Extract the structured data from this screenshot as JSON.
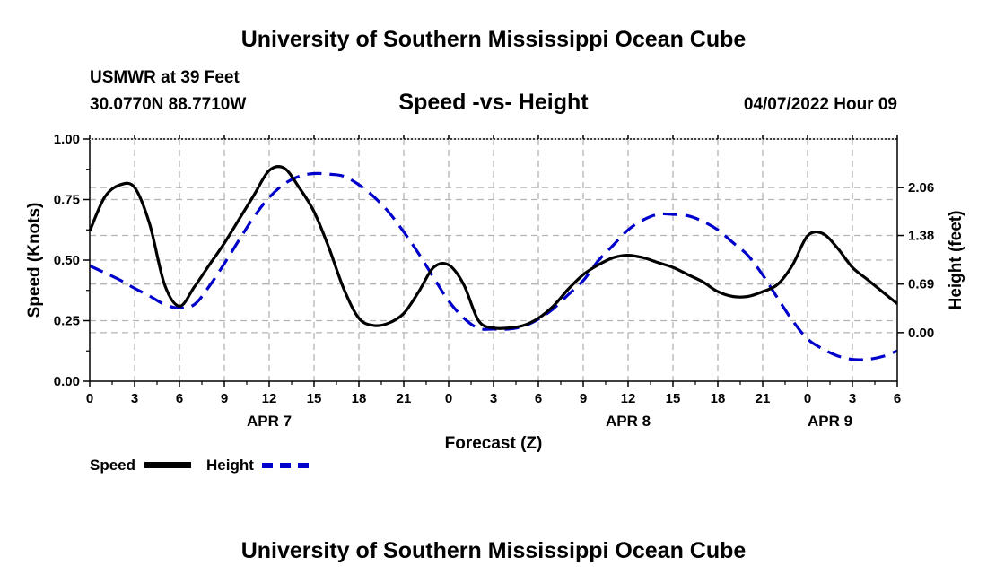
{
  "header": {
    "title": "University of Southern Mississippi Ocean Cube",
    "station": "USMWR at 39 Feet",
    "coordinates": "30.0770N  88.7710W",
    "subtitle": "Speed -vs- Height",
    "datetime": "04/07/2022 Hour 09"
  },
  "footer": {
    "title": "University of Southern Mississippi Ocean Cube"
  },
  "legend": {
    "speed_label": "Speed",
    "height_label": "Height"
  },
  "colors": {
    "speed": "#000000",
    "height": "#0000cc",
    "grid": "#b4b4b4"
  },
  "chart_data": {
    "type": "line",
    "title": "Speed -vs- Height",
    "xlabel": "Forecast (Z)",
    "ylabel": "Speed (Knots)",
    "y2label": "Height (feet)",
    "xlim": [
      0,
      54
    ],
    "ylim": [
      0,
      1
    ],
    "y2lim": [
      -0.69,
      2.75
    ],
    "grid": true,
    "x_ticks": [
      0,
      3,
      6,
      9,
      12,
      15,
      18,
      21,
      24,
      27,
      30,
      33,
      36,
      39,
      42,
      45,
      48,
      51,
      54
    ],
    "x_tick_labels": [
      "0",
      "3",
      "6",
      "9",
      "12",
      "15",
      "18",
      "21",
      "0",
      "3",
      "6",
      "9",
      "12",
      "15",
      "18",
      "21",
      "0",
      "3",
      "6"
    ],
    "date_labels": [
      {
        "label": "APR 7",
        "x": 12
      },
      {
        "label": "APR 8",
        "x": 36
      },
      {
        "label": "APR 9",
        "x": 49.5
      }
    ],
    "y_ticks": [
      0.0,
      0.25,
      0.5,
      0.75,
      1.0
    ],
    "y_tick_labels": [
      "0.00",
      "0.25",
      "0.50",
      "0.75",
      "1.00"
    ],
    "y2_ticks": [
      0.0,
      0.69,
      1.38,
      2.06
    ],
    "y2_tick_labels": [
      "0.00",
      "0.69",
      "1.38",
      "2.06"
    ],
    "series": [
      {
        "name": "Speed",
        "axis": "left",
        "style": "solid",
        "x": [
          0,
          1,
          2,
          3,
          4,
          5,
          6,
          7,
          8,
          9,
          10,
          11,
          12,
          13,
          14,
          15,
          16,
          17,
          18,
          19,
          20,
          21,
          22,
          23,
          24,
          25,
          26,
          27,
          28,
          29,
          30,
          31,
          32,
          33,
          34,
          35,
          36,
          37,
          38,
          39,
          40,
          41,
          42,
          43,
          44,
          45,
          46,
          47,
          48,
          49,
          50,
          51,
          52,
          53,
          54
        ],
        "values": [
          0.62,
          0.76,
          0.81,
          0.8,
          0.65,
          0.4,
          0.31,
          0.39,
          0.48,
          0.57,
          0.67,
          0.77,
          0.87,
          0.88,
          0.8,
          0.7,
          0.55,
          0.38,
          0.26,
          0.23,
          0.24,
          0.28,
          0.37,
          0.47,
          0.48,
          0.4,
          0.25,
          0.22,
          0.22,
          0.23,
          0.26,
          0.31,
          0.38,
          0.44,
          0.48,
          0.51,
          0.52,
          0.51,
          0.49,
          0.47,
          0.44,
          0.41,
          0.37,
          0.35,
          0.35,
          0.37,
          0.4,
          0.48,
          0.6,
          0.61,
          0.55,
          0.47,
          0.42,
          0.37,
          0.32
        ]
      },
      {
        "name": "Height",
        "axis": "right",
        "style": "dashed",
        "x": [
          0,
          1,
          2,
          3,
          4,
          5,
          6,
          7,
          8,
          9,
          10,
          11,
          12,
          13,
          14,
          15,
          16,
          17,
          18,
          19,
          20,
          21,
          22,
          23,
          24,
          25,
          26,
          27,
          28,
          29,
          30,
          31,
          32,
          33,
          34,
          35,
          36,
          37,
          38,
          39,
          40,
          41,
          42,
          43,
          44,
          45,
          46,
          47,
          48,
          49,
          50,
          51,
          52,
          53,
          54
        ],
        "values": [
          0.95,
          0.85,
          0.75,
          0.63,
          0.52,
          0.4,
          0.35,
          0.4,
          0.66,
          0.98,
          1.32,
          1.65,
          1.92,
          2.11,
          2.22,
          2.26,
          2.25,
          2.22,
          2.1,
          1.93,
          1.71,
          1.43,
          1.12,
          0.78,
          0.45,
          0.21,
          0.06,
          0.05,
          0.05,
          0.09,
          0.19,
          0.34,
          0.54,
          0.74,
          1.02,
          1.24,
          1.46,
          1.6,
          1.68,
          1.68,
          1.66,
          1.58,
          1.46,
          1.28,
          1.1,
          0.82,
          0.49,
          0.17,
          -0.09,
          -0.23,
          -0.33,
          -0.38,
          -0.38,
          -0.34,
          -0.26
        ]
      }
    ]
  }
}
